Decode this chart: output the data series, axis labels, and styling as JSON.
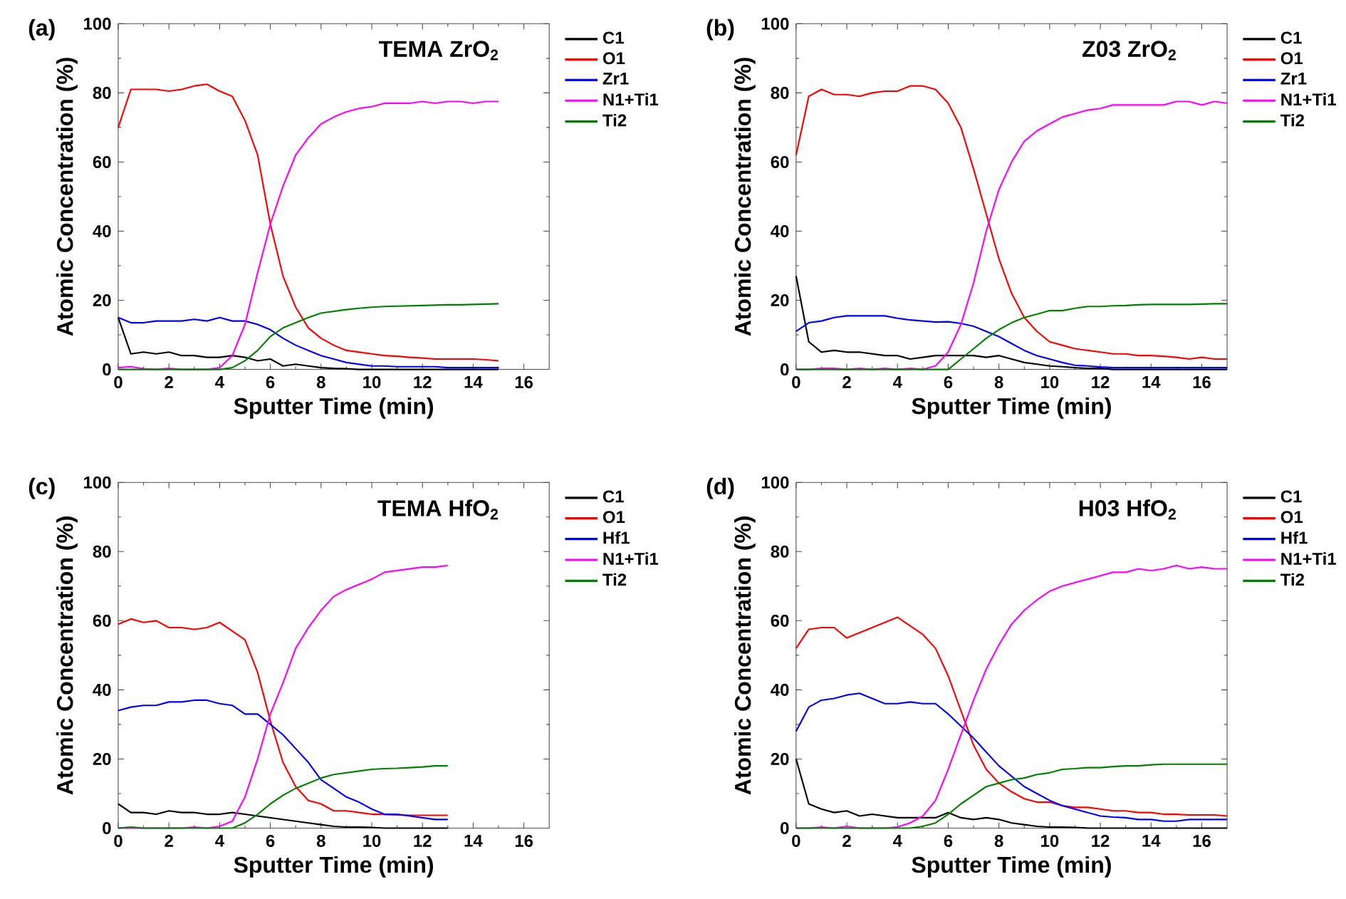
{
  "chart_data": [
    {
      "type": "line",
      "title": "(a)",
      "annotations": [
        "TEMA ZrO$_{2}$"
      ],
      "xlabel": "Sputter Time (min)",
      "ylabel": "Atomic Concentration (%)",
      "xlim": [
        0,
        17
      ],
      "xticks": [
        0,
        2,
        4,
        6,
        8,
        10,
        12,
        14,
        16
      ],
      "ylim": [
        0,
        100
      ],
      "yticks": [
        0,
        20,
        40,
        60,
        80,
        100
      ],
      "legend": "right",
      "x": [
        0,
        0.5,
        1,
        1.5,
        2,
        2.5,
        3,
        3.5,
        4,
        4.5,
        5,
        5.5,
        6,
        6.5,
        7,
        7.5,
        8,
        8.5,
        9,
        9.5,
        10,
        10.5,
        11,
        11.5,
        12,
        12.5,
        13,
        13.5,
        14,
        14.5,
        15
      ],
      "series": [
        {
          "name": "C1",
          "color": "#000000",
          "values": [
            15,
            4.5,
            5,
            4.5,
            5,
            4,
            4,
            3.5,
            3.5,
            4,
            3.5,
            2.5,
            3,
            1,
            1.5,
            1,
            0.5,
            0.3,
            0.2,
            0,
            0,
            0,
            0,
            0,
            0,
            0,
            0,
            0,
            0,
            0,
            0
          ]
        },
        {
          "name": "O1",
          "color": "#ff0000",
          "values": [
            70,
            81,
            81,
            81,
            80.5,
            81,
            82,
            82.5,
            80.5,
            79,
            72,
            62,
            42,
            27,
            18,
            12,
            9,
            7,
            5.5,
            5,
            4.5,
            4,
            3.8,
            3.5,
            3.3,
            3,
            3,
            3,
            3,
            2.8,
            2.5
          ]
        },
        {
          "name": "Zr1",
          "color": "#0000ff",
          "values": [
            15,
            13.5,
            13.5,
            14,
            14,
            14,
            14.5,
            14,
            15,
            14,
            14,
            13,
            11.5,
            9,
            7,
            5.5,
            4,
            3,
            2,
            1.5,
            1,
            1,
            0.8,
            0.8,
            0.8,
            0.8,
            0.5,
            0.5,
            0.5,
            0.5,
            0.5
          ]
        },
        {
          "name": "N1+Ti1",
          "color": "#ff00ff",
          "values": [
            0.5,
            0.8,
            0.2,
            0,
            0.3,
            0,
            0,
            0,
            0.5,
            4,
            13,
            28,
            42,
            53,
            62,
            67,
            71,
            73,
            74.5,
            75.5,
            76,
            77,
            77,
            77,
            77.5,
            77,
            77.5,
            77.5,
            77,
            77.5,
            77.5
          ]
        },
        {
          "name": "Ti2",
          "color": "#008000",
          "values": [
            0,
            0,
            0,
            0,
            0,
            0,
            0,
            0,
            0,
            0.5,
            2.5,
            5.5,
            9.5,
            12,
            13.5,
            15,
            16.3,
            16.8,
            17.3,
            17.7,
            18,
            18.2,
            18.3,
            18.4,
            18.5,
            18.6,
            18.7,
            18.7,
            18.8,
            18.9,
            19
          ]
        }
      ]
    },
    {
      "type": "line",
      "title": "(b)",
      "annotations": [
        "Z03 ZrO$_{2}$"
      ],
      "xlabel": "Sputter Time (min)",
      "ylabel": "Atomic Concentration (%)",
      "xlim": [
        0,
        17
      ],
      "xticks": [
        0,
        2,
        4,
        6,
        8,
        10,
        12,
        14,
        16
      ],
      "ylim": [
        0,
        100
      ],
      "yticks": [
        0,
        20,
        40,
        60,
        80,
        100
      ],
      "legend": "right",
      "x": [
        0,
        0.5,
        1,
        1.5,
        2,
        2.5,
        3,
        3.5,
        4,
        4.5,
        5,
        5.5,
        6,
        6.5,
        7,
        7.5,
        8,
        8.5,
        9,
        9.5,
        10,
        10.5,
        11,
        11.5,
        12,
        12.5,
        13,
        13.5,
        14,
        14.5,
        15,
        15.5,
        16,
        16.5,
        17
      ],
      "series": [
        {
          "name": "C1",
          "color": "#000000",
          "values": [
            27,
            8,
            5,
            5.5,
            5,
            5,
            4.5,
            4,
            4,
            3,
            3.5,
            4,
            4,
            4,
            4,
            3.5,
            4,
            3,
            2,
            1.5,
            1,
            0.8,
            0.5,
            0.3,
            0.3,
            0,
            0,
            0,
            0,
            0,
            0,
            0,
            0,
            0,
            0
          ]
        },
        {
          "name": "O1",
          "color": "#ff0000",
          "values": [
            62,
            79,
            81,
            79.5,
            79.5,
            79,
            80,
            80.5,
            80.5,
            82,
            82,
            81,
            77,
            70,
            58,
            45,
            32,
            22,
            15,
            11,
            8,
            7,
            6,
            5.5,
            5,
            4.5,
            4.5,
            4,
            4,
            3.8,
            3.5,
            3,
            3.5,
            3,
            3
          ]
        },
        {
          "name": "Zr1",
          "color": "#0000ff",
          "values": [
            11,
            13.5,
            14,
            15,
            15.5,
            15.5,
            15.5,
            15.5,
            14.8,
            14.3,
            14,
            13.7,
            13.8,
            13.3,
            12.5,
            11,
            9.5,
            7.5,
            5.5,
            4,
            3,
            2,
            1.2,
            1,
            0.7,
            0.5,
            0.5,
            0.5,
            0.5,
            0.5,
            0.5,
            0.5,
            0.5,
            0.5,
            0.5
          ]
        },
        {
          "name": "N1+Ti1",
          "color": "#ff00ff",
          "values": [
            0,
            0,
            0.3,
            0.3,
            0,
            0.3,
            0,
            0.3,
            0,
            0.3,
            0,
            1,
            5,
            13,
            25,
            40,
            52,
            60,
            66,
            69,
            71,
            73,
            74,
            75,
            75.5,
            76.5,
            76.5,
            76.5,
            76.5,
            76.5,
            77.5,
            77.5,
            76.5,
            77.5,
            77
          ]
        },
        {
          "name": "Ti2",
          "color": "#008000",
          "values": [
            0,
            0,
            0,
            0,
            0,
            0,
            0,
            0,
            0,
            0,
            0,
            0,
            0,
            3,
            6,
            9,
            11.5,
            13.5,
            15,
            16,
            17,
            17,
            17.7,
            18.2,
            18.2,
            18.4,
            18.5,
            18.7,
            18.8,
            18.8,
            18.8,
            18.8,
            18.9,
            19,
            19
          ]
        }
      ]
    },
    {
      "type": "line",
      "title": "(c)",
      "annotations": [
        "TEMA HfO$_{2}$"
      ],
      "xlabel": "Sputter Time (min)",
      "ylabel": "Atomic Concentration (%)",
      "xlim": [
        0,
        17
      ],
      "xticks": [
        0,
        2,
        4,
        6,
        8,
        10,
        12,
        14,
        16
      ],
      "ylim": [
        0,
        100
      ],
      "yticks": [
        0,
        20,
        40,
        60,
        80,
        100
      ],
      "legend": "right",
      "x": [
        0,
        0.5,
        1,
        1.5,
        2,
        2.5,
        3,
        3.5,
        4,
        4.5,
        5,
        5.5,
        6,
        6.5,
        7,
        7.5,
        8,
        8.5,
        9,
        9.5,
        10,
        10.5,
        11,
        11.5,
        12,
        12.5,
        13
      ],
      "series": [
        {
          "name": "C1",
          "color": "#000000",
          "values": [
            7,
            4.5,
            4.5,
            4,
            5,
            4.5,
            4.5,
            4,
            4,
            4.5,
            4,
            3.5,
            3,
            2.5,
            2,
            1.5,
            1,
            0.5,
            0.3,
            0.3,
            0.2,
            0,
            0,
            0,
            0,
            0,
            0
          ]
        },
        {
          "name": "O1",
          "color": "#ff0000",
          "values": [
            59,
            60.5,
            59.5,
            60,
            58,
            58,
            57.5,
            58,
            59.5,
            57,
            54.5,
            45,
            31,
            19,
            12,
            8,
            7,
            5,
            5,
            4.5,
            4,
            4,
            3.8,
            3.7,
            3.7,
            3.7,
            3.7
          ]
        },
        {
          "name": "Hf1",
          "color": "#0000ff",
          "values": [
            34,
            35,
            35.5,
            35.5,
            36.5,
            36.5,
            37,
            37,
            36,
            35.5,
            33,
            33,
            30,
            27,
            23,
            19,
            14,
            11.5,
            9,
            7.5,
            5.5,
            4,
            4,
            3.5,
            3,
            2.5,
            2.5
          ]
        },
        {
          "name": "N1+Ti1",
          "color": "#ff00ff",
          "values": [
            0,
            0,
            0,
            0,
            0,
            0,
            0.3,
            0,
            0.5,
            2,
            9,
            20,
            33,
            42,
            52,
            58,
            63,
            67,
            69,
            70.5,
            72,
            74,
            74.5,
            75,
            75.5,
            75.5,
            76
          ]
        },
        {
          "name": "Ti2",
          "color": "#008000",
          "values": [
            0,
            0.3,
            0,
            0,
            0,
            0,
            0,
            0,
            0,
            0,
            1.5,
            4,
            7,
            9.5,
            11.5,
            13,
            14.5,
            15.5,
            16,
            16.5,
            17,
            17.2,
            17.3,
            17.5,
            17.7,
            18,
            18
          ]
        }
      ]
    },
    {
      "type": "line",
      "title": "(d)",
      "annotations": [
        "H03 HfO$_{2}$"
      ],
      "xlabel": "Sputter Time (min)",
      "ylabel": "Atomic Concentration (%)",
      "xlim": [
        0,
        17
      ],
      "xticks": [
        0,
        2,
        4,
        6,
        8,
        10,
        12,
        14,
        16
      ],
      "ylim": [
        0,
        100
      ],
      "yticks": [
        0,
        20,
        40,
        60,
        80,
        100
      ],
      "legend": "right",
      "x": [
        0,
        0.5,
        1,
        1.5,
        2,
        2.5,
        3,
        3.5,
        4,
        4.5,
        5,
        5.5,
        6,
        6.5,
        7,
        7.5,
        8,
        8.5,
        9,
        9.5,
        10,
        10.5,
        11,
        11.5,
        12,
        12.5,
        13,
        13.5,
        14,
        14.5,
        15,
        15.5,
        16,
        16.5,
        17
      ],
      "series": [
        {
          "name": "C1",
          "color": "#000000",
          "values": [
            20,
            7,
            5.5,
            4.5,
            5,
            3.5,
            4,
            3.5,
            3,
            3,
            3,
            3,
            4.5,
            3,
            2.5,
            3,
            2.5,
            1.5,
            1,
            0.5,
            0.3,
            0.3,
            0.2,
            0,
            0,
            0,
            0,
            0,
            0,
            0,
            0,
            0,
            0,
            0,
            0
          ]
        },
        {
          "name": "O1",
          "color": "#ff0000",
          "values": [
            52,
            57.5,
            58,
            58,
            55,
            56.5,
            58,
            59.5,
            61,
            58.5,
            56,
            52,
            44,
            34,
            24,
            17,
            13,
            10.5,
            8.5,
            7.5,
            7.5,
            6.5,
            6,
            6,
            5.5,
            5,
            5,
            4.5,
            4.5,
            4,
            4,
            3.8,
            3.8,
            3.8,
            3.5
          ]
        },
        {
          "name": "Hf1",
          "color": "#0000ff",
          "values": [
            28,
            35,
            37,
            37.5,
            38.5,
            39,
            37.5,
            36,
            36,
            36.5,
            36,
            36,
            33,
            29.5,
            26,
            22,
            18,
            15,
            12,
            10,
            8,
            6.5,
            5.5,
            4.5,
            3.5,
            3.2,
            3,
            2.5,
            2.5,
            2,
            2,
            2.5,
            2.5,
            2.5,
            2.5
          ]
        },
        {
          "name": "N1+Ti1",
          "color": "#ff00ff",
          "values": [
            0,
            0,
            0.3,
            0,
            0.5,
            0,
            0,
            0,
            0.3,
            1.5,
            3.5,
            8,
            17,
            27,
            37,
            46,
            53,
            59,
            63,
            66,
            68.5,
            70,
            71,
            72,
            73,
            74,
            74,
            75,
            74.5,
            75,
            76,
            75,
            75.5,
            75,
            75
          ]
        },
        {
          "name": "Ti2",
          "color": "#008000",
          "values": [
            0,
            0,
            0,
            0,
            0,
            0,
            0,
            0,
            0,
            0,
            0.5,
            1.5,
            4,
            7,
            9.5,
            12,
            13,
            14,
            14.5,
            15.5,
            16,
            17,
            17.2,
            17.5,
            17.5,
            17.8,
            18,
            18,
            18.3,
            18.5,
            18.5,
            18.5,
            18.5,
            18.5,
            18.5
          ]
        }
      ]
    }
  ]
}
